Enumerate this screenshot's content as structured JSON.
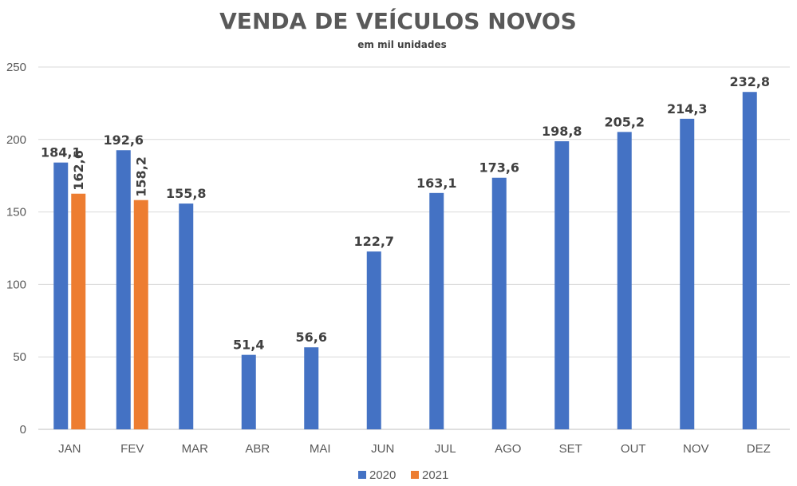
{
  "chart_data": {
    "type": "bar",
    "title": "VENDA DE VEÍCULOS NOVOS",
    "subtitle": "em mil unidades",
    "xlabel": "",
    "ylabel": "",
    "ylim": [
      0,
      250
    ],
    "yticks": [
      "0",
      "50",
      "100",
      "150",
      "200",
      "250"
    ],
    "grid": true,
    "legend_position": "bottom",
    "categories": [
      "JAN",
      "FEV",
      "MAR",
      "ABR",
      "MAI",
      "JUN",
      "JUL",
      "AGO",
      "SET",
      "OUT",
      "NOV",
      "DEZ"
    ],
    "series": [
      {
        "name": "2020",
        "color": "#4472c4",
        "values": [
          184.1,
          192.6,
          155.8,
          51.4,
          56.6,
          122.7,
          163.1,
          173.6,
          198.8,
          205.2,
          214.3,
          232.8
        ],
        "labels": [
          "184,1",
          "192,6",
          "155,8",
          "51,4",
          "56,6",
          "122,7",
          "163,1",
          "173,6",
          "198,8",
          "205,2",
          "214,3",
          "232,8"
        ]
      },
      {
        "name": "2021",
        "color": "#ed7d31",
        "values": [
          162.6,
          158.2,
          null,
          null,
          null,
          null,
          null,
          null,
          null,
          null,
          null,
          null
        ],
        "labels": [
          "162,6",
          "158,2",
          null,
          null,
          null,
          null,
          null,
          null,
          null,
          null,
          null,
          null
        ]
      }
    ]
  }
}
